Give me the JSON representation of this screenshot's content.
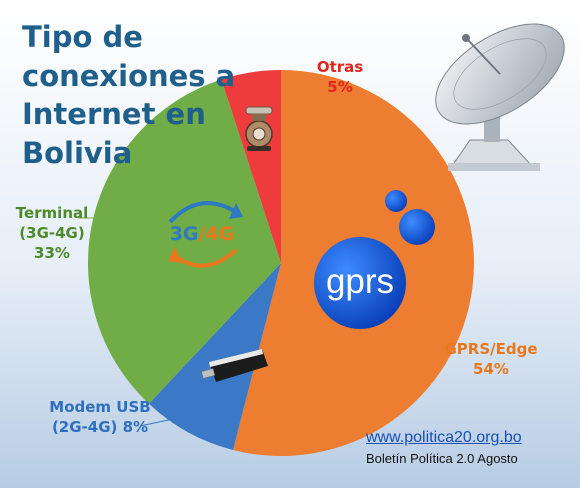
{
  "title_lines": [
    "Tipo de",
    "conexiones a",
    "Internet en",
    "Bolivia"
  ],
  "chart_data": {
    "type": "pie",
    "title": "Tipo de conexiones a Internet en Bolivia",
    "slices": [
      {
        "label_lines": [
          "GPRS/Edge",
          "54%"
        ],
        "value": 54,
        "color": "#ed7d31"
      },
      {
        "label_lines": [
          "Modem USB",
          "(2G-4G) 8%"
        ],
        "value": 8,
        "color": "#3b78c6"
      },
      {
        "label_lines": [
          "Terminal",
          "(3G-4G)",
          "33%"
        ],
        "value": 33,
        "color": "#70ad47"
      },
      {
        "label_lines": [
          "Otras",
          "5%"
        ],
        "value": 5,
        "color": "#ee3b3b"
      }
    ]
  },
  "icons": {
    "gprs_text": "gprs",
    "g34_left": "3G",
    "g34_slash": "/",
    "g34_right": "4G"
  },
  "source": {
    "url": "www.politica20.org.bo",
    "credit": "Boletín Política 2.0 Agosto"
  }
}
